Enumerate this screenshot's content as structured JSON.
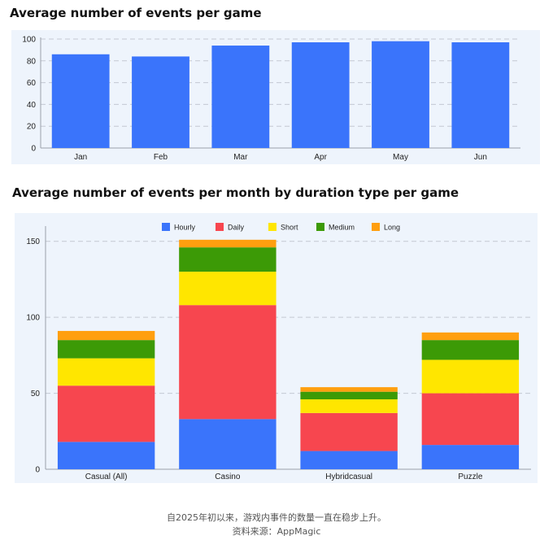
{
  "chart_data": [
    {
      "type": "bar",
      "title": "Average number of events per game",
      "categories": [
        "Jan",
        "Feb",
        "Mar",
        "Apr",
        "May",
        "Jun"
      ],
      "values": [
        86,
        84,
        94,
        97,
        98,
        97
      ],
      "ylim": [
        0,
        100
      ],
      "yticks": [
        0,
        20,
        40,
        60,
        80,
        100
      ],
      "grid": true,
      "color": "#3a74fb"
    },
    {
      "type": "bar",
      "stacked": true,
      "title": "Average number of events per month by duration type per game",
      "categories": [
        "Casual (All)",
        "Casino",
        "Hybridcasual",
        "Puzzle"
      ],
      "series": [
        {
          "name": "Hourly",
          "color": "#3a74fb",
          "values": [
            18,
            33,
            12,
            16
          ]
        },
        {
          "name": "Daily",
          "color": "#f7464f",
          "values": [
            37,
            75,
            25,
            34
          ]
        },
        {
          "name": "Short",
          "color": "#ffe600",
          "values": [
            18,
            22,
            9,
            22
          ]
        },
        {
          "name": "Medium",
          "color": "#3c9a06",
          "values": [
            12,
            16,
            5,
            13
          ]
        },
        {
          "name": "Long",
          "color": "#ff9f0f",
          "values": [
            6,
            5,
            3,
            5
          ]
        }
      ],
      "ylim": [
        0,
        160
      ],
      "yticks": [
        0,
        50,
        100,
        150
      ],
      "grid": true,
      "legend_position": "top-center"
    }
  ],
  "footer": {
    "caption": "自2025年初以来，游戏内事件的数量一直在稳步上升。",
    "source": "资料来源：AppMagic"
  }
}
